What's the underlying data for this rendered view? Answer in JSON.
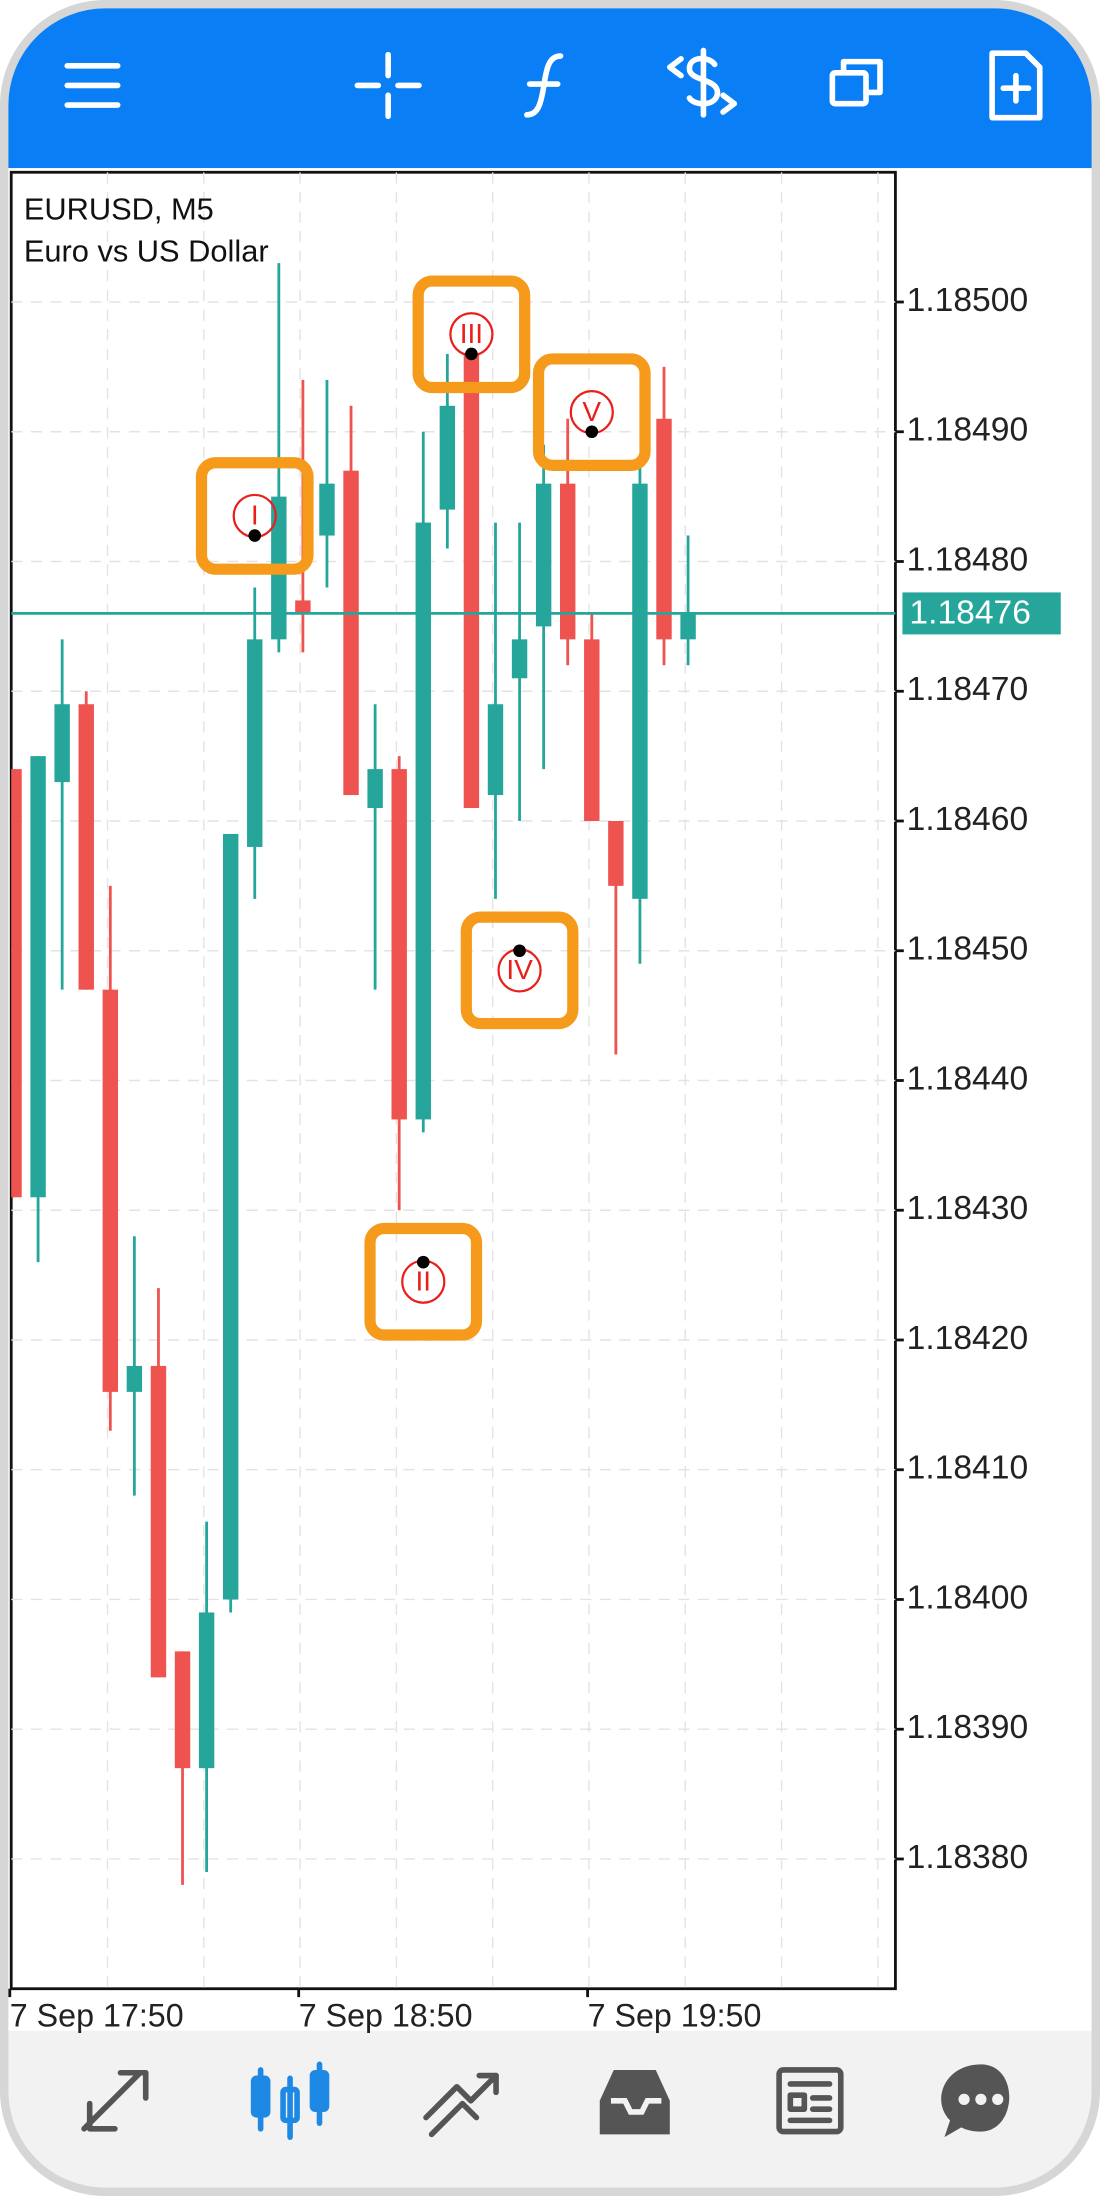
{
  "chart_data": {
    "type": "candlestick",
    "title": "EURUSD, M5",
    "subtitle": "Euro vs US Dollar",
    "categories": [
      "7 Sep 17:50",
      null,
      null,
      null,
      null,
      null,
      null,
      null,
      null,
      null,
      null,
      null,
      "7 Sep 18:50",
      null,
      null,
      null,
      null,
      null,
      null,
      null,
      null,
      null,
      null,
      null,
      "7 Sep 19:50",
      null,
      null,
      null,
      null
    ],
    "open": [
      1.18464,
      1.18431,
      1.18463,
      1.18469,
      1.18447,
      1.18416,
      1.18418,
      1.18396,
      1.18387,
      1.184,
      1.18458,
      1.18474,
      1.18477,
      1.18482,
      1.18487,
      1.18461,
      1.18464,
      1.18437,
      1.18484,
      1.18496,
      1.18462,
      1.18471,
      1.18475,
      1.18486,
      1.18474,
      1.1846,
      1.18454,
      1.18491,
      1.18474
    ],
    "high": [
      1.18464,
      1.18465,
      1.18474,
      1.1847,
      1.18455,
      1.18428,
      1.18424,
      1.18396,
      1.18406,
      1.18459,
      1.18478,
      1.18503,
      1.18494,
      1.18494,
      1.18492,
      1.18469,
      1.18465,
      1.1849,
      1.18496,
      1.18496,
      1.18483,
      1.18483,
      1.18489,
      1.18491,
      1.18476,
      1.1846,
      1.18488,
      1.18495,
      1.18482
    ],
    "low": [
      1.18431,
      1.18426,
      1.18447,
      1.18447,
      1.18413,
      1.18408,
      1.18394,
      1.18378,
      1.18379,
      1.18399,
      1.18454,
      1.18473,
      1.18473,
      1.18478,
      1.18462,
      1.18447,
      1.1843,
      1.18436,
      1.18481,
      1.18461,
      1.18454,
      1.1846,
      1.18464,
      1.18472,
      1.1846,
      1.18442,
      1.18449,
      1.18472,
      1.18472
    ],
    "close": [
      1.18431,
      1.18465,
      1.18469,
      1.18447,
      1.18416,
      1.18418,
      1.18394,
      1.18387,
      1.18399,
      1.18459,
      1.18474,
      1.18485,
      1.18476,
      1.18486,
      1.18462,
      1.18464,
      1.18437,
      1.18483,
      1.18492,
      1.18461,
      1.18469,
      1.18474,
      1.18486,
      1.18474,
      1.1846,
      1.18455,
      1.18486,
      1.18474,
      1.18476
    ],
    "up_color": "#26a69a",
    "down_color": "#ef5350",
    "ylim": [
      1.1837,
      1.1851
    ],
    "yticks": [
      {
        "value": 1.1838,
        "label": "1.18380"
      },
      {
        "value": 1.1839,
        "label": "1.18390"
      },
      {
        "value": 1.184,
        "label": "1.18400"
      },
      {
        "value": 1.1841,
        "label": "1.18410"
      },
      {
        "value": 1.1842,
        "label": "1.18420"
      },
      {
        "value": 1.1843,
        "label": "1.18430"
      },
      {
        "value": 1.1844,
        "label": "1.18440"
      },
      {
        "value": 1.1845,
        "label": "1.18450"
      },
      {
        "value": 1.1846,
        "label": "1.18460"
      },
      {
        "value": 1.1847,
        "label": "1.18470"
      },
      {
        "value": 1.1848,
        "label": "1.18480"
      },
      {
        "value": 1.1849,
        "label": "1.18490"
      },
      {
        "value": 1.185,
        "label": "1.18500"
      }
    ],
    "grid": true,
    "current_price": {
      "value": 1.18476,
      "label": "1.18476"
    },
    "waves": [
      {
        "label": "I",
        "index": 10,
        "price": 1.18482,
        "position": "above"
      },
      {
        "label": "II",
        "index": 17,
        "price": 1.18426,
        "position": "below"
      },
      {
        "label": "III",
        "index": 19,
        "price": 1.18496,
        "position": "above"
      },
      {
        "label": "IV",
        "index": 21,
        "price": 1.1845,
        "position": "below"
      },
      {
        "label": "V",
        "index": 24,
        "price": 1.1849,
        "position": "above"
      }
    ]
  }
}
